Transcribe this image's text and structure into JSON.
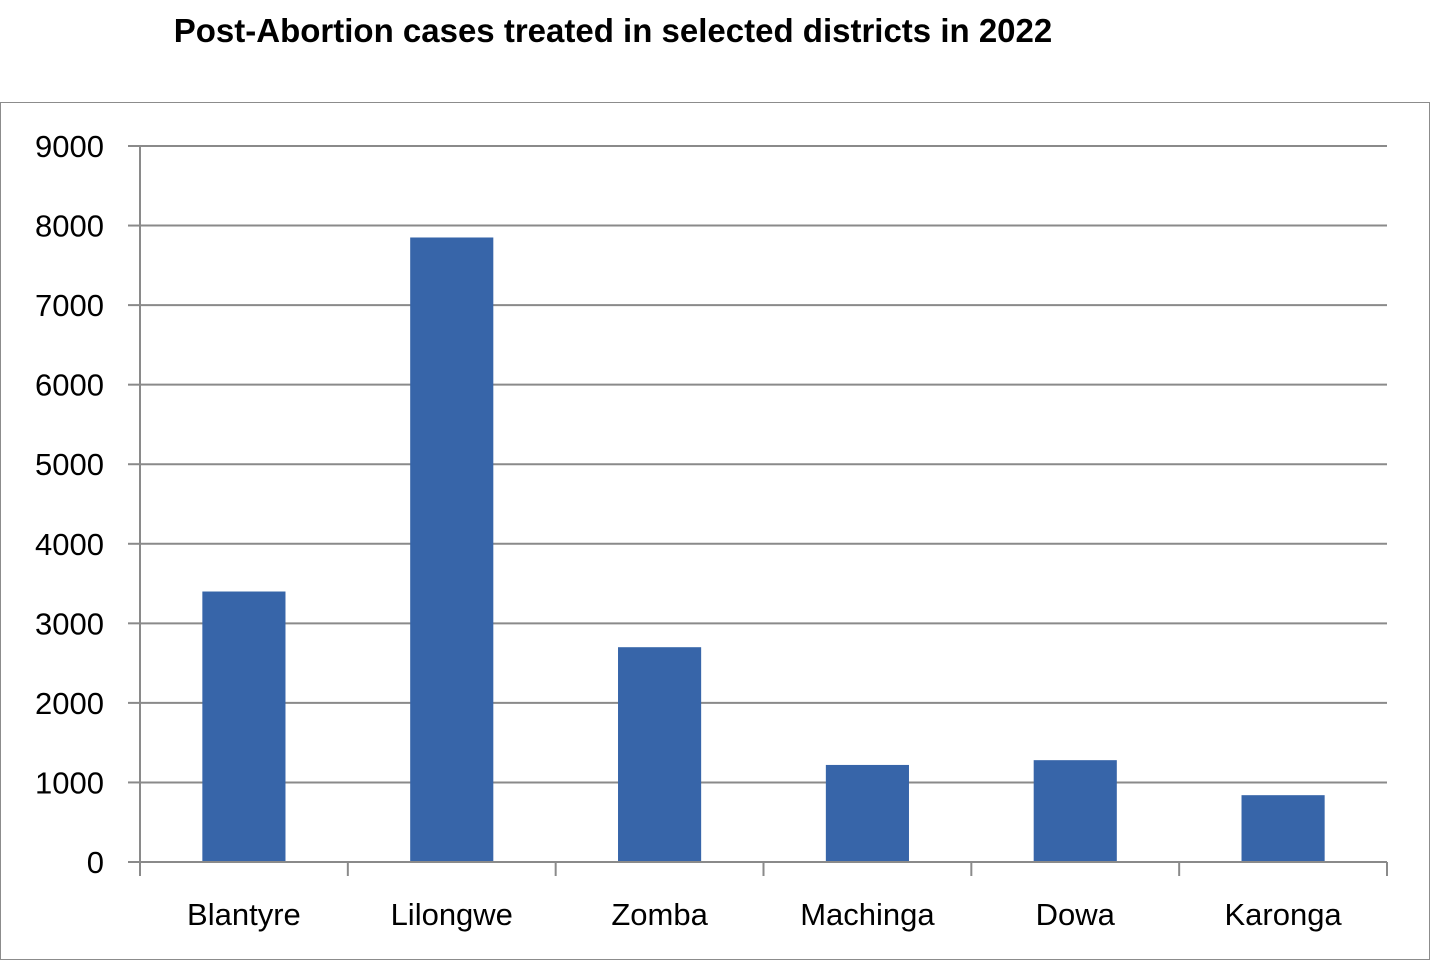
{
  "chart_data": {
    "type": "bar",
    "title": "Post-Abortion cases treated in selected districts in 2022",
    "xlabel": "",
    "ylabel": "",
    "categories": [
      "Blantyre",
      "Lilongwe",
      "Zomba",
      "Machinga",
      "Dowa",
      "Karonga"
    ],
    "values": [
      3400,
      7850,
      2700,
      1220,
      1280,
      840
    ],
    "ylim": [
      0,
      9000
    ],
    "yticks": [
      0,
      1000,
      2000,
      3000,
      4000,
      5000,
      6000,
      7000,
      8000,
      9000
    ],
    "grid": true,
    "legend": "none",
    "bar_color": "#3765a9",
    "grid_color": "#8a8a8a"
  }
}
